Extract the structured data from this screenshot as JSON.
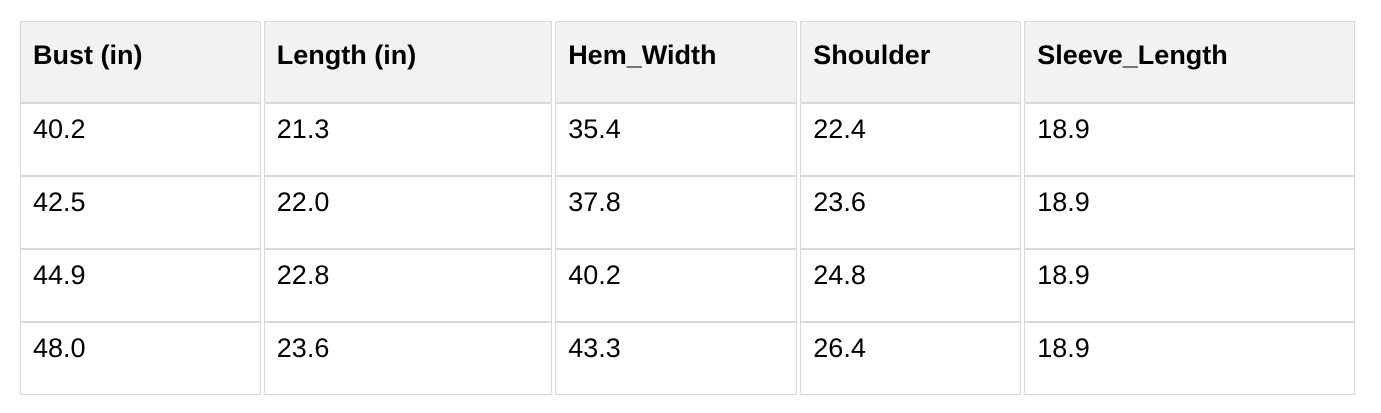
{
  "table": {
    "headers": [
      "Bust (in)",
      "Length (in)",
      "Hem_Width",
      "Shoulder",
      "Sleeve_Length"
    ],
    "rows": [
      [
        "40.2",
        "21.3",
        "35.4",
        "22.4",
        "18.9"
      ],
      [
        "42.5",
        "22.0",
        "37.8",
        "23.6",
        "18.9"
      ],
      [
        "44.9",
        "22.8",
        "40.2",
        "24.8",
        "18.9"
      ],
      [
        "48.0",
        "23.6",
        "43.3",
        "26.4",
        "18.9"
      ]
    ]
  },
  "colors": {
    "page_bg": "#ffffff",
    "header_bg": "#f2f2f2",
    "border": "#d9d9d9",
    "text": "#000000"
  },
  "chart_data": {
    "type": "table",
    "columns": [
      "Bust (in)",
      "Length (in)",
      "Hem_Width",
      "Shoulder",
      "Sleeve_Length"
    ],
    "rows": [
      [
        40.2,
        21.3,
        35.4,
        22.4,
        18.9
      ],
      [
        42.5,
        22.0,
        37.8,
        23.6,
        18.9
      ],
      [
        44.9,
        22.8,
        40.2,
        24.8,
        18.9
      ],
      [
        48.0,
        23.6,
        43.3,
        26.4,
        18.9
      ]
    ]
  }
}
